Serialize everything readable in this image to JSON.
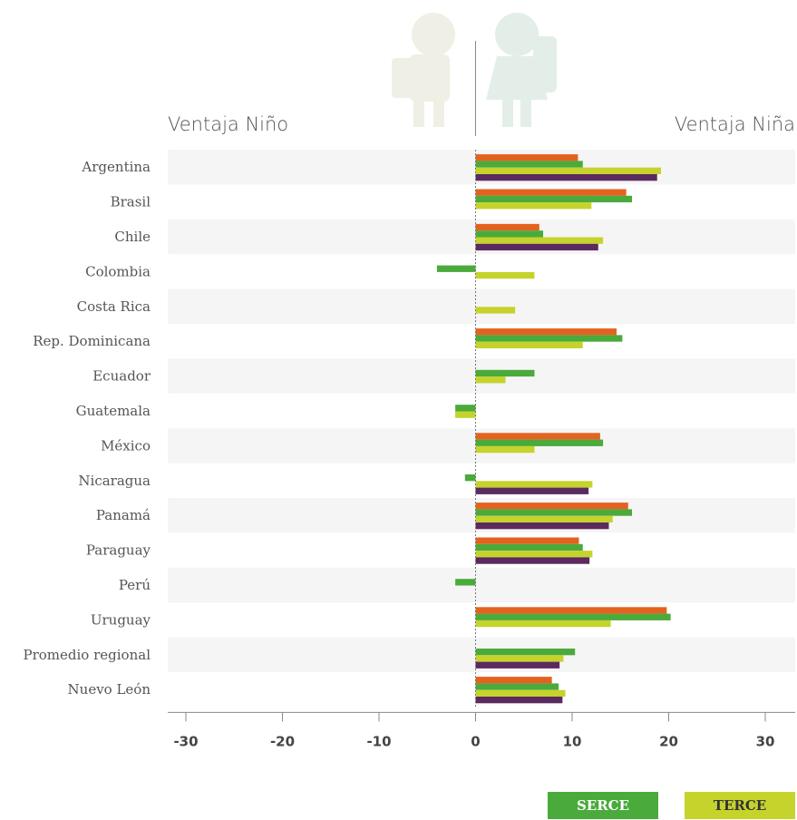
{
  "chart_data": {
    "type": "bar",
    "orientation": "horizontal",
    "title": "",
    "left_label": "Ventaja Niño",
    "right_label": "Ventaja Niña",
    "categories": [
      "Argentina",
      "Brasil",
      "Chile",
      "Colombia",
      "Costa Rica",
      "Rep. Dominicana",
      "Ecuador",
      "Guatemala",
      "México",
      "Nicaragua",
      "Panamá",
      "Paraguay",
      "Perú",
      "Uruguay",
      "Promedio regional",
      "Nuevo León"
    ],
    "series": [
      {
        "color": "#e3621f",
        "values": [
          10.6,
          15.6,
          6.6,
          null,
          null,
          14.6,
          null,
          null,
          12.9,
          null,
          15.8,
          10.7,
          null,
          19.8,
          null,
          7.9
        ]
      },
      {
        "name": "SERCE",
        "color": "#4aaa3c",
        "values": [
          11.1,
          16.2,
          7.0,
          -4.0,
          null,
          15.2,
          6.1,
          -2.1,
          13.2,
          -1.1,
          16.2,
          11.1,
          -2.1,
          20.2,
          10.3,
          8.6
        ]
      },
      {
        "name": "TERCE",
        "color": "#c5d32c",
        "values": [
          19.2,
          12.0,
          13.2,
          6.1,
          4.1,
          11.1,
          3.1,
          -2.1,
          6.1,
          12.1,
          14.2,
          12.1,
          null,
          14.0,
          9.1,
          9.3
        ]
      },
      {
        "color": "#5b2a5e",
        "values": [
          18.8,
          null,
          12.7,
          null,
          null,
          null,
          null,
          null,
          null,
          11.7,
          13.8,
          11.8,
          null,
          null,
          8.7,
          9.0
        ]
      }
    ],
    "xticks": [
      -30,
      -20,
      -10,
      0,
      10,
      20,
      30
    ],
    "xlim": [
      -31.5,
      33
    ],
    "grid": false,
    "band_rows": "alternating"
  },
  "legend": {
    "serce": {
      "label": "SERCE",
      "color": "#4aaa3c"
    },
    "terce": {
      "label": "TERCE",
      "color": "#c5d32c"
    }
  }
}
